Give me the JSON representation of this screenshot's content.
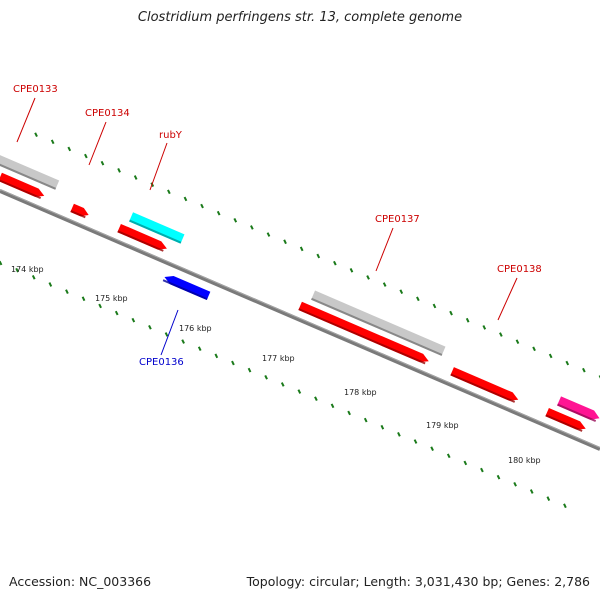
{
  "title": "Clostridium perfringens str. 13, complete genome",
  "footer": {
    "accession": "Accession: NC_003366",
    "summary": "Topology: circular; Length: 3,031,430 bp; Genes: 2,786"
  },
  "colors": {
    "backbone": "#7a7a7a",
    "tick": "#1a7a1a",
    "cds": "#ff0000",
    "gene_bar": "#c8c8c8",
    "rna": "#00ffff",
    "reverse_cds": "#0000ff",
    "other": "#ff1493",
    "label_forward": "#cc0000",
    "label_reverse": "#0000cc"
  },
  "genes": [
    {
      "id": "CPE0133",
      "label": "CPE0133",
      "strand": "forward"
    },
    {
      "id": "CPE0134",
      "label": "CPE0134",
      "strand": "forward"
    },
    {
      "id": "rubY",
      "label": "rubY",
      "strand": "forward"
    },
    {
      "id": "CPE0136",
      "label": "CPE0136",
      "strand": "reverse"
    },
    {
      "id": "CPE0137",
      "label": "CPE0137",
      "strand": "forward"
    },
    {
      "id": "CPE0138",
      "label": "CPE0138",
      "strand": "forward"
    }
  ],
  "ticks": [
    {
      "label": "174 kbp"
    },
    {
      "label": "175 kbp"
    },
    {
      "label": "176 kbp"
    },
    {
      "label": "177 kbp"
    },
    {
      "label": "178 kbp"
    },
    {
      "label": "179 kbp"
    },
    {
      "label": "180 kbp"
    }
  ]
}
